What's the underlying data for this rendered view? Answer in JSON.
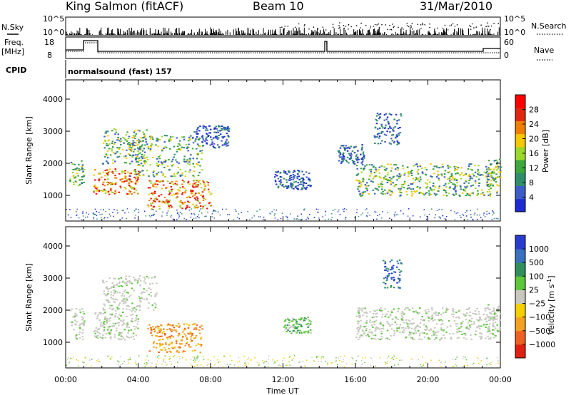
{
  "header": {
    "station": "King Salmon (fitACF)",
    "beam": "Beam 10",
    "date": "31/Mar/2010"
  },
  "status_panel": {
    "nsky_label": "N.Sky",
    "nsky_ticks": [
      "10^5",
      "10^0"
    ],
    "nsearch_label": "N.Search",
    "nsearch_ticks": [
      "10^5",
      "10^0"
    ],
    "freq_label": "Freq.",
    "freq_unit": "[MHz]",
    "freq_ticks": [
      "18",
      "8"
    ],
    "nave_label": "Nave",
    "nave_ticks": [
      "60",
      "0"
    ],
    "cpid_label": "CPID",
    "cpid_value": "normalsound (fast) 157"
  },
  "chart_data": [
    {
      "type": "heatmap",
      "name": "power-panel",
      "ylabel": "Slant Range [km]",
      "ylim": [
        200,
        4600
      ],
      "yticks": [
        1000,
        2000,
        3000,
        4000
      ],
      "ytick_labels": [
        "1000",
        "2000",
        "3000",
        "4000"
      ],
      "xlim_hours": [
        0,
        24
      ],
      "colorbar": {
        "label": "Power [dB]",
        "ticks": [
          "4",
          "8",
          "12",
          "16",
          "20",
          "24",
          "28"
        ],
        "colors": [
          "#1e2ad2",
          "#3c5cc8",
          "#2f8f6a",
          "#3aa83a",
          "#9bd82a",
          "#f5c800",
          "#f07f00",
          "#e02810",
          "#ff0000"
        ]
      },
      "scatter_bands": [
        {
          "t": [
            0.2,
            1.0
          ],
          "r": [
            1250,
            2100
          ],
          "level": "mid"
        },
        {
          "t": [
            1.5,
            4.0
          ],
          "r": [
            1050,
            1850
          ],
          "level": "high"
        },
        {
          "t": [
            2.0,
            4.5
          ],
          "r": [
            2000,
            3100
          ],
          "level": "mid"
        },
        {
          "t": [
            3.5,
            7.5
          ],
          "r": [
            1600,
            2900
          ],
          "level": "mid"
        },
        {
          "t": [
            4.5,
            8.0
          ],
          "r": [
            600,
            1500
          ],
          "level": "high"
        },
        {
          "t": [
            7.0,
            9.0
          ],
          "r": [
            2500,
            3200
          ],
          "level": "low"
        },
        {
          "t": [
            11.5,
            13.5
          ],
          "r": [
            1200,
            1800
          ],
          "level": "low"
        },
        {
          "t": [
            15.0,
            16.5
          ],
          "r": [
            2000,
            2600
          ],
          "level": "low"
        },
        {
          "t": [
            16.0,
            23.8
          ],
          "r": [
            1000,
            2000
          ],
          "level": "mid"
        },
        {
          "t": [
            17.0,
            18.5
          ],
          "r": [
            2600,
            3600
          ],
          "level": "low"
        },
        {
          "t": [
            23.2,
            24.0
          ],
          "r": [
            1300,
            2200
          ],
          "level": "mid"
        }
      ]
    },
    {
      "type": "heatmap",
      "name": "velocity-panel",
      "ylabel": "Slant Range [km]",
      "ylim": [
        200,
        4600
      ],
      "yticks": [
        1000,
        2000,
        3000,
        4000
      ],
      "ytick_labels": [
        "1000",
        "2000",
        "3000",
        "4000"
      ],
      "xlim_hours": [
        0,
        24
      ],
      "xticks": [
        "00:00",
        "04:00",
        "08:00",
        "12:00",
        "16:00",
        "20:00",
        "00:00"
      ],
      "xlabel": "Time UT",
      "colorbar": {
        "label": "Velocity [m s",
        "label_sup": "-1",
        "label_end": "]",
        "ticks": [
          "1000",
          "500",
          "100",
          "25",
          "−25",
          "−100",
          "−500",
          "−1000"
        ],
        "colors": [
          "#2a3cd0",
          "#3a70c0",
          "#2f8f5a",
          "#5cc83a",
          "#c8c8c0",
          "#f5d000",
          "#f5a020",
          "#f06020",
          "#e02010"
        ]
      },
      "scatter_bands": [
        {
          "t": [
            0.2,
            1.0
          ],
          "r": [
            1100,
            2100
          ],
          "level": "ground"
        },
        {
          "t": [
            1.5,
            4.0
          ],
          "r": [
            1100,
            2000
          ],
          "level": "ground"
        },
        {
          "t": [
            2.0,
            5.0
          ],
          "r": [
            2000,
            3100
          ],
          "level": "ground"
        },
        {
          "t": [
            4.5,
            7.5
          ],
          "r": [
            700,
            1600
          ],
          "level": "neg"
        },
        {
          "t": [
            12.0,
            13.5
          ],
          "r": [
            1300,
            1800
          ],
          "level": "pos"
        },
        {
          "t": [
            16.0,
            23.8
          ],
          "r": [
            1100,
            2100
          ],
          "level": "ground"
        },
        {
          "t": [
            17.5,
            18.5
          ],
          "r": [
            2700,
            3600
          ],
          "level": "high"
        },
        {
          "t": [
            23.2,
            24.0
          ],
          "r": [
            1300,
            2200
          ],
          "level": "ground"
        }
      ]
    }
  ]
}
